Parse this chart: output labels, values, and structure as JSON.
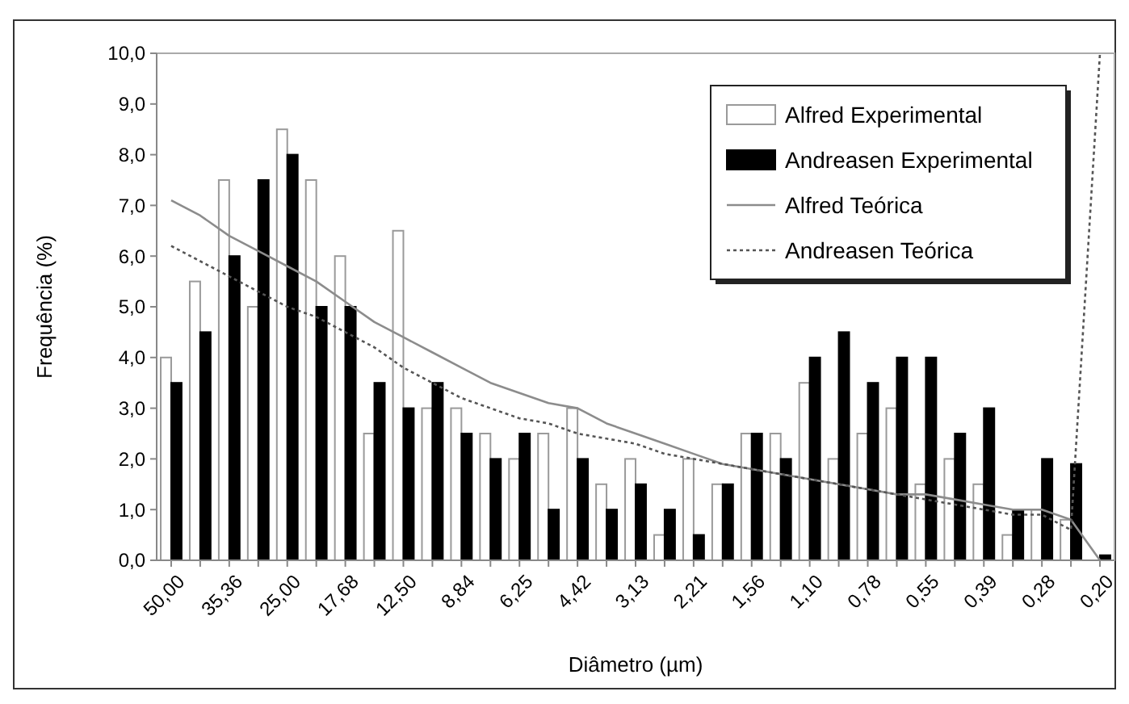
{
  "chart_data": {
    "type": "bar",
    "xlabel": "Diâmetro (µm)",
    "ylabel": "Frequência (%)",
    "categories": [
      "50,00",
      null,
      "35,36",
      null,
      "25,00",
      null,
      "17,68",
      null,
      "12,50",
      null,
      "8,84",
      null,
      "6,25",
      null,
      "4,42",
      null,
      "3,13",
      null,
      "2,21",
      null,
      "1,56",
      null,
      "1,10",
      null,
      "0,78",
      null,
      "0,55",
      null,
      "0,39",
      null,
      "0,28",
      null,
      "0,20"
    ],
    "series": [
      {
        "name": "Alfred Experimental",
        "color": "#ffffff",
        "values": [
          4.0,
          5.5,
          7.5,
          5.0,
          8.5,
          7.5,
          6.0,
          2.5,
          6.5,
          3.0,
          3.0,
          2.5,
          2.0,
          2.5,
          3.0,
          1.5,
          2.0,
          0.5,
          2.0,
          1.5,
          2.5,
          2.5,
          3.5,
          2.0,
          2.5,
          3.0,
          1.5,
          2.0,
          1.5,
          0.5,
          1.0,
          0.8,
          0.0
        ]
      },
      {
        "name": "Andreasen Experimental",
        "color": "#000000",
        "values": [
          3.5,
          4.5,
          6.0,
          7.5,
          8.0,
          5.0,
          5.0,
          3.5,
          3.0,
          3.5,
          2.5,
          2.0,
          2.5,
          1.0,
          2.0,
          1.0,
          1.5,
          1.0,
          0.5,
          1.5,
          2.5,
          2.0,
          4.0,
          4.5,
          3.5,
          4.0,
          4.0,
          2.5,
          3.0,
          1.0,
          2.0,
          1.9,
          0.1
        ]
      },
      {
        "name": "Alfred Teórica",
        "type": "line",
        "line_style": "solid",
        "color": "#8c8c8c",
        "values": [
          7.1,
          6.8,
          6.4,
          6.1,
          5.8,
          5.5,
          5.1,
          4.7,
          4.4,
          4.1,
          3.8,
          3.5,
          3.3,
          3.1,
          3.0,
          2.7,
          2.5,
          2.3,
          2.1,
          1.9,
          1.8,
          1.7,
          1.6,
          1.5,
          1.4,
          1.3,
          1.3,
          1.2,
          1.1,
          1.0,
          1.0,
          0.8,
          0.0
        ]
      },
      {
        "name": "Andreasen Teórica",
        "type": "line",
        "line_style": "dotted",
        "color": "#555555",
        "values": [
          6.2,
          5.9,
          5.6,
          5.3,
          5.0,
          4.8,
          4.5,
          4.2,
          3.8,
          3.5,
          3.2,
          3.0,
          2.8,
          2.7,
          2.5,
          2.4,
          2.3,
          2.1,
          2.0,
          1.9,
          1.8,
          1.7,
          1.6,
          1.5,
          1.4,
          1.3,
          1.2,
          1.1,
          1.0,
          0.9,
          0.9,
          0.6,
          10.0
        ]
      }
    ],
    "ylim": [
      0,
      10
    ],
    "yticks": [
      {
        "value": 0,
        "label": "0,0"
      },
      {
        "value": 1,
        "label": "1,0"
      },
      {
        "value": 2,
        "label": "2,0"
      },
      {
        "value": 3,
        "label": "3,0"
      },
      {
        "value": 4,
        "label": "4,0"
      },
      {
        "value": 5,
        "label": "5,0"
      },
      {
        "value": 6,
        "label": "6,0"
      },
      {
        "value": 7,
        "label": "7,0"
      },
      {
        "value": 8,
        "label": "8,0"
      },
      {
        "value": 9,
        "label": "9,0"
      },
      {
        "value": 10,
        "label": "10,0"
      }
    ],
    "legend": "top right",
    "grid": false
  }
}
